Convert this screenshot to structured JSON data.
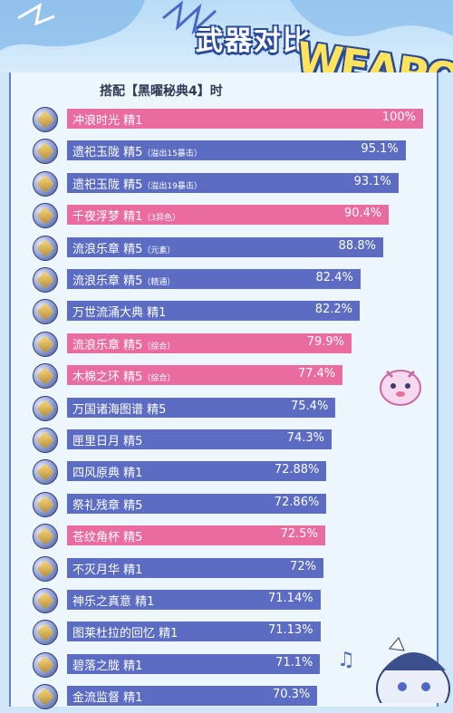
{
  "title": "武器对比",
  "deco_word": "WEAPO",
  "subtitle": "搭配【黑曜秘典4】时",
  "colors": {
    "blue": "#5b6cc2",
    "pink": "#ea6c9f"
  },
  "chart_data": {
    "type": "bar",
    "orientation": "horizontal",
    "max": 100,
    "series": [
      {
        "label": "冲浪时光 精1",
        "note": "",
        "display": "100%",
        "value": 100,
        "color": "pink"
      },
      {
        "label": "遗祀玉陇 精5",
        "note": "（溢出15暴击）",
        "display": "95.1%",
        "value": 95.1,
        "color": "blue"
      },
      {
        "label": "遗祀玉陇 精5",
        "note": "（溢出19暴击）",
        "display": "93.1%",
        "value": 93.1,
        "color": "blue"
      },
      {
        "label": "千夜浮梦 精1",
        "note": "（3异色）",
        "display": "90.4%",
        "value": 90.4,
        "color": "pink"
      },
      {
        "label": "流浪乐章 精5",
        "note": "（元素）",
        "display": "88.8%",
        "value": 88.8,
        "color": "blue"
      },
      {
        "label": "流浪乐章 精5",
        "note": "（精通）",
        "display": "82.4%",
        "value": 82.4,
        "color": "blue"
      },
      {
        "label": "万世流涌大典 精1",
        "note": "",
        "display": "82.2%",
        "value": 82.2,
        "color": "blue"
      },
      {
        "label": "流浪乐章 精5",
        "note": "（综合）",
        "display": "79.9%",
        "value": 79.9,
        "color": "pink"
      },
      {
        "label": "木棉之环 精5",
        "note": "（综合）",
        "display": "77.4%",
        "value": 77.4,
        "color": "pink"
      },
      {
        "label": "万国诸海图谱 精5",
        "note": "",
        "display": "75.4%",
        "value": 75.4,
        "color": "blue"
      },
      {
        "label": "匣里日月 精5",
        "note": "",
        "display": "74.3%",
        "value": 74.3,
        "color": "blue"
      },
      {
        "label": "四风原典 精1",
        "note": "",
        "display": "72.88%",
        "value": 72.88,
        "color": "blue"
      },
      {
        "label": "祭礼残章 精5",
        "note": "",
        "display": "72.86%",
        "value": 72.86,
        "color": "blue"
      },
      {
        "label": "苍纹角杯 精5",
        "note": "",
        "display": "72.5%",
        "value": 72.5,
        "color": "pink"
      },
      {
        "label": "不灭月华 精1",
        "note": "",
        "display": "72%",
        "value": 72,
        "color": "blue"
      },
      {
        "label": "神乐之真意 精1",
        "note": "",
        "display": "71.14%",
        "value": 71.14,
        "color": "blue"
      },
      {
        "label": "图莱杜拉的回忆 精1",
        "note": "",
        "display": "71.13%",
        "value": 71.13,
        "color": "blue"
      },
      {
        "label": "碧落之胧 精1",
        "note": "",
        "display": "71.1%",
        "value": 71.1,
        "color": "blue"
      },
      {
        "label": "金流监督 精1",
        "note": "",
        "display": "70.3%",
        "value": 70.3,
        "color": "blue"
      }
    ]
  }
}
